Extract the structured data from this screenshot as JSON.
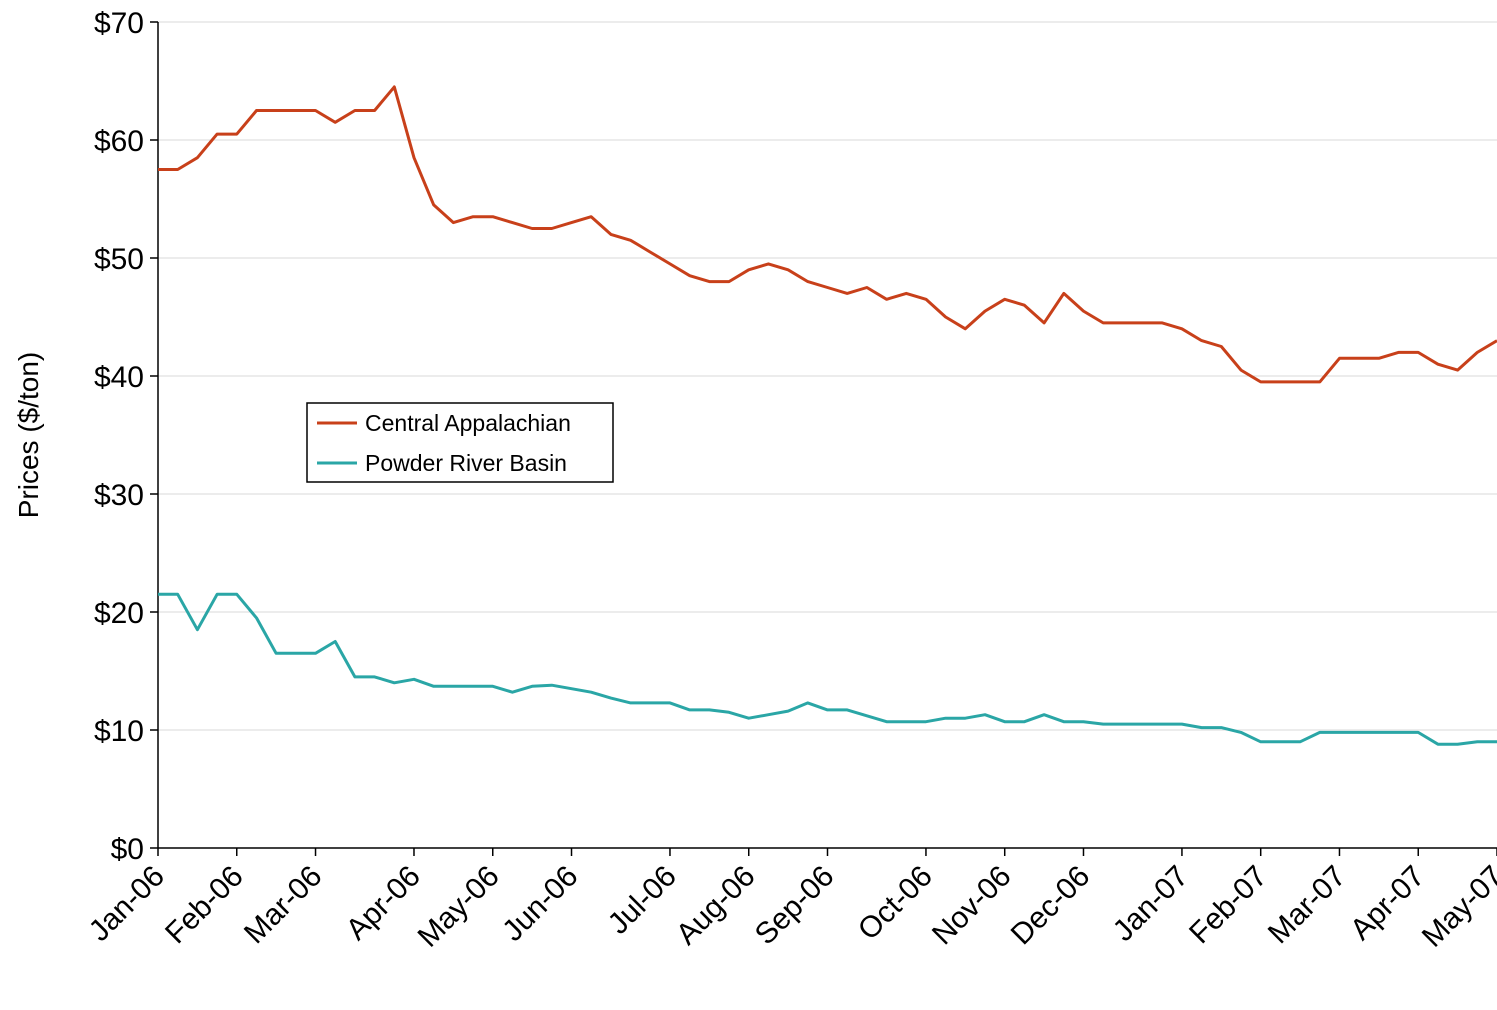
{
  "chart_data": {
    "type": "line",
    "ylabel": "Prices ($/ton)",
    "categories": [
      "Jan-06",
      null,
      null,
      null,
      "Feb-06",
      null,
      null,
      null,
      "Mar-06",
      null,
      null,
      null,
      null,
      "Apr-06",
      null,
      null,
      null,
      "May-06",
      null,
      null,
      null,
      "Jun-06",
      null,
      null,
      null,
      null,
      "Jul-06",
      null,
      null,
      null,
      "Aug-06",
      null,
      null,
      null,
      "Sep-06",
      null,
      null,
      null,
      null,
      "Oct-06",
      null,
      null,
      null,
      "Nov-06",
      null,
      null,
      null,
      "Dec-06",
      null,
      null,
      null,
      null,
      "Jan-07",
      null,
      null,
      null,
      "Feb-07",
      null,
      null,
      null,
      "Mar-07",
      null,
      null,
      null,
      "Apr-07",
      null,
      null,
      null,
      "May-07"
    ],
    "series": [
      {
        "name": "Central Appalachian",
        "color": "#c8401a",
        "values": [
          57.5,
          57.5,
          58.5,
          60.5,
          60.5,
          62.5,
          62.5,
          62.5,
          62.5,
          61.5,
          62.5,
          62.5,
          64.5,
          58.5,
          54.5,
          53,
          53.5,
          53.5,
          53,
          52.5,
          52.5,
          53,
          53.5,
          52,
          51.5,
          50.5,
          49.5,
          48.5,
          48,
          48,
          49,
          49.5,
          49,
          48,
          47.5,
          47,
          47.5,
          46.5,
          47,
          46.5,
          45,
          44,
          45.5,
          46.5,
          46,
          44.5,
          47,
          45.5,
          44.5,
          44.5,
          44.5,
          44.5,
          44,
          43,
          42.5,
          40.5,
          39.5,
          39.5,
          39.5,
          39.5,
          41.5,
          41.5,
          41.5,
          42,
          42,
          41,
          40.5,
          42,
          43
        ]
      },
      {
        "name": "Powder River Basin",
        "color": "#2aa6a6",
        "values": [
          21.5,
          21.5,
          18.5,
          21.5,
          21.5,
          19.5,
          16.5,
          16.5,
          16.5,
          17.5,
          14.5,
          14.5,
          14,
          14.3,
          13.7,
          13.7,
          13.7,
          13.7,
          13.2,
          13.7,
          13.8,
          13.5,
          13.2,
          12.7,
          12.3,
          12.3,
          12.3,
          11.7,
          11.7,
          11.5,
          11,
          11.3,
          11.6,
          12.3,
          11.7,
          11.7,
          11.2,
          10.7,
          10.7,
          10.7,
          11,
          11,
          11.3,
          10.7,
          10.7,
          11.3,
          10.7,
          10.7,
          10.5,
          10.5,
          10.5,
          10.5,
          10.5,
          10.2,
          10.2,
          9.8,
          9,
          9,
          9,
          9.8,
          9.8,
          9.8,
          9.8,
          9.8,
          9.8,
          8.8,
          8.8,
          9,
          9
        ]
      }
    ],
    "ylim": [
      0,
      70
    ],
    "yticks": [
      {
        "value": 0,
        "label": "$0"
      },
      {
        "value": 10,
        "label": "$10"
      },
      {
        "value": 20,
        "label": "$20"
      },
      {
        "value": 30,
        "label": "$30"
      },
      {
        "value": 40,
        "label": "$40"
      },
      {
        "value": 50,
        "label": "$50"
      },
      {
        "value": 60,
        "label": "$60"
      },
      {
        "value": 70,
        "label": "$70"
      }
    ],
    "grid": true,
    "legend": "left"
  }
}
